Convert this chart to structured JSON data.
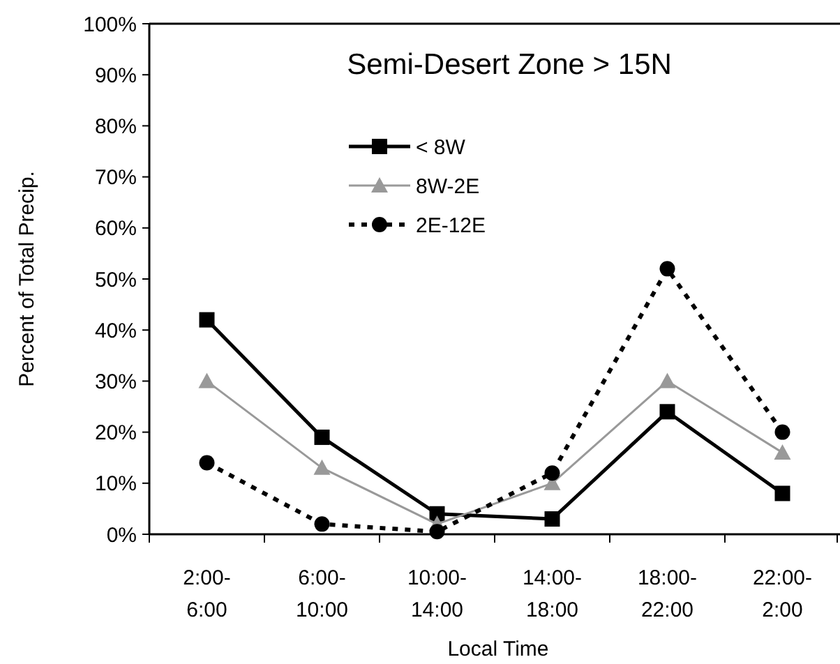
{
  "chart_data": {
    "type": "line",
    "title": "Semi-Desert Zone > 15N",
    "xlabel": "Local Time",
    "ylabel": "Percent of Total Precip.",
    "categories": [
      "2:00-6:00",
      "6:00-10:00",
      "10:00-14:00",
      "14:00-18:00",
      "18:00-22:00",
      "22:00-2:00"
    ],
    "series": [
      {
        "name": "< 8W",
        "color": "#000000",
        "marker": "square",
        "line_style": "solid",
        "values": [
          42,
          19,
          4,
          3,
          24,
          8
        ]
      },
      {
        "name": "8W-2E",
        "color": "#999999",
        "marker": "triangle",
        "line_style": "solid",
        "values": [
          30,
          13,
          2,
          10,
          30,
          16
        ]
      },
      {
        "name": "2E-12E",
        "color": "#000000",
        "marker": "circle",
        "line_style": "dotted",
        "values": [
          14,
          2,
          0.5,
          12,
          52,
          20
        ]
      }
    ],
    "ylim": [
      0,
      100
    ],
    "yticks": [
      {
        "value": 0,
        "label": "0%"
      },
      {
        "value": 10,
        "label": "10%"
      },
      {
        "value": 20,
        "label": "20%"
      },
      {
        "value": 30,
        "label": "30%"
      },
      {
        "value": 40,
        "label": "40%"
      },
      {
        "value": 50,
        "label": "50%"
      },
      {
        "value": 60,
        "label": "60%"
      },
      {
        "value": 70,
        "label": "70%"
      },
      {
        "value": 80,
        "label": "80%"
      },
      {
        "value": 90,
        "label": "90%"
      },
      {
        "value": 100,
        "label": "100%"
      }
    ],
    "legend": "top left"
  }
}
